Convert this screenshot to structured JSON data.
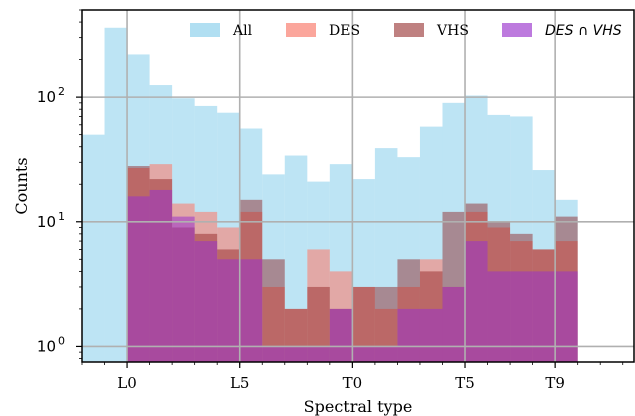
{
  "chart_data": {
    "type": "bar",
    "subtype": "overlapping-histogram",
    "xlabel": "Spectral type",
    "ylabel": "Counts",
    "yscale": "log",
    "ylim": [
      0.75,
      500
    ],
    "xlim": [
      -2.0,
      22.5
    ],
    "bin_width": 1,
    "bin_starts": [
      -2,
      -1,
      0,
      1,
      2,
      3,
      4,
      5,
      6,
      7,
      8,
      9,
      10,
      11,
      12,
      13,
      14,
      15,
      16,
      17,
      18,
      19,
      20,
      21
    ],
    "x_ticks": [
      {
        "label": "L0",
        "value": 0
      },
      {
        "label": "L5",
        "value": 5
      },
      {
        "label": "T0",
        "value": 10
      },
      {
        "label": "T5",
        "value": 15
      },
      {
        "label": "T9",
        "value": 19
      }
    ],
    "y_ticks": [
      {
        "value": 1,
        "label_base": "10",
        "label_exp": "0"
      },
      {
        "value": 10,
        "label_base": "10",
        "label_exp": "1"
      },
      {
        "value": 100,
        "label_base": "10",
        "label_exp": "2"
      }
    ],
    "grid": true,
    "legend_position": "top",
    "series": [
      {
        "name": "All",
        "color": "#87ceeb",
        "opacity": 0.55,
        "italic": false,
        "values": [
          50,
          360,
          220,
          125,
          98,
          85,
          75,
          56,
          24,
          34,
          21,
          29,
          22,
          39,
          33,
          58,
          90,
          103,
          72,
          70,
          26,
          15,
          0,
          0
        ]
      },
      {
        "name": "DES",
        "color": "#fa8072",
        "opacity": 0.6,
        "italic": false,
        "values": [
          0,
          0,
          27,
          29,
          14,
          12,
          9,
          12,
          3,
          2,
          6,
          4,
          3,
          2,
          3,
          5,
          3,
          12,
          9,
          7,
          6,
          7,
          0,
          0
        ]
      },
      {
        "name": "VHS",
        "color": "#8b1a1a",
        "opacity": 0.45,
        "italic": false,
        "values": [
          0,
          0,
          28,
          22,
          9,
          8,
          6,
          15,
          5,
          2,
          3,
          2,
          3,
          3,
          5,
          4,
          12,
          14,
          10,
          8,
          6,
          11,
          0,
          0
        ]
      },
      {
        "name": "DES ∩ VHS",
        "color": "#9932cc",
        "opacity": 0.55,
        "italic": true,
        "values": [
          0,
          0,
          16,
          18,
          11,
          7,
          5,
          5,
          1,
          1,
          1,
          2,
          1,
          1,
          2,
          2,
          3,
          7,
          4,
          4,
          4,
          4,
          0,
          0
        ]
      }
    ]
  }
}
